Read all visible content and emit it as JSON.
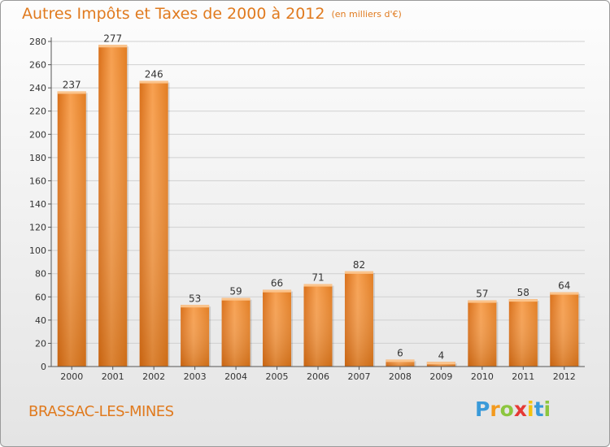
{
  "chart_data": {
    "type": "bar",
    "title": "Autres Impôts et Taxes de 2000 à 2012",
    "subtitle": "(en milliers d'€)",
    "categories": [
      "2000",
      "2001",
      "2002",
      "2003",
      "2004",
      "2005",
      "2006",
      "2007",
      "2008",
      "2009",
      "2010",
      "2011",
      "2012"
    ],
    "values": [
      237,
      277,
      246,
      53,
      59,
      66,
      71,
      82,
      6,
      4,
      57,
      58,
      64
    ],
    "ylim": [
      0,
      280
    ],
    "yticks": [
      0,
      20,
      40,
      60,
      80,
      100,
      120,
      140,
      160,
      180,
      200,
      220,
      240,
      260,
      280
    ],
    "grid": true,
    "bar_color": "#f0892b",
    "legend": "none"
  },
  "footer": {
    "place": "BRASSAC-LES-MINES",
    "logo": [
      "P",
      "r",
      "o",
      "x",
      "i",
      "t",
      "i"
    ],
    "logo_colors": [
      "#3a9ad9",
      "#f39a1e",
      "#8cc63f",
      "#e53935",
      "#f4c20d",
      "#3a9ad9",
      "#8cc63f"
    ]
  },
  "colors": {
    "accent": "#e07a1e",
    "grid": "#d0d0d0",
    "axis": "#555555"
  }
}
